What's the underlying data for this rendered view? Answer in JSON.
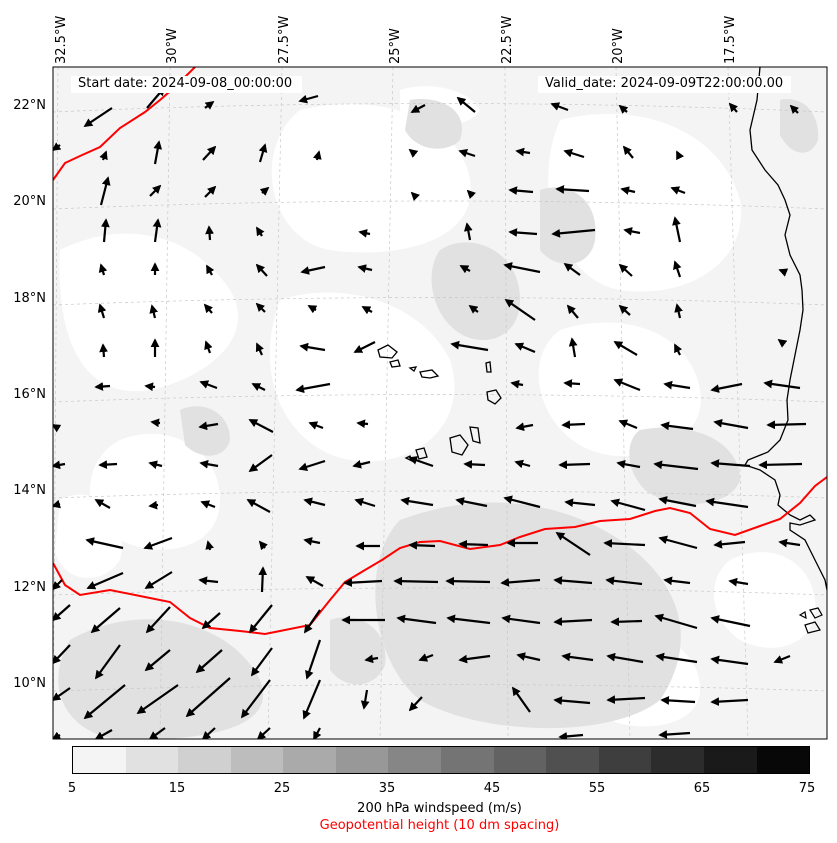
{
  "map": {
    "start_date": "Start date: 2024-09-08_00:00:00",
    "valid_date": "Valid_date: 2024-09-09T22:00:00.00",
    "lon_labels": [
      "32.5°W",
      "30°W",
      "27.5°W",
      "25°W",
      "22.5°W",
      "20°W",
      "17.5°W"
    ],
    "lat_labels": [
      "22°N",
      "20°N",
      "18°N",
      "16°N",
      "14°N",
      "12°N",
      "10°N"
    ]
  },
  "colorbar": {
    "ticks": [
      "5",
      "15",
      "25",
      "35",
      "45",
      "55",
      "65",
      "75"
    ],
    "colors": [
      "#f4f4f4",
      "#e1e1e1",
      "#d0d0d0",
      "#bdbdbd",
      "#aaaaaa",
      "#989898",
      "#868686",
      "#747474",
      "#626262",
      "#505050",
      "#3e3e3e",
      "#2c2c2c",
      "#1a1a1a",
      "#080808"
    ],
    "label": "200 hPa windspeed (m/s)",
    "sublabel": "Geopotential height (10 dm spacing)",
    "sublabel_color": "#ff0000"
  }
}
